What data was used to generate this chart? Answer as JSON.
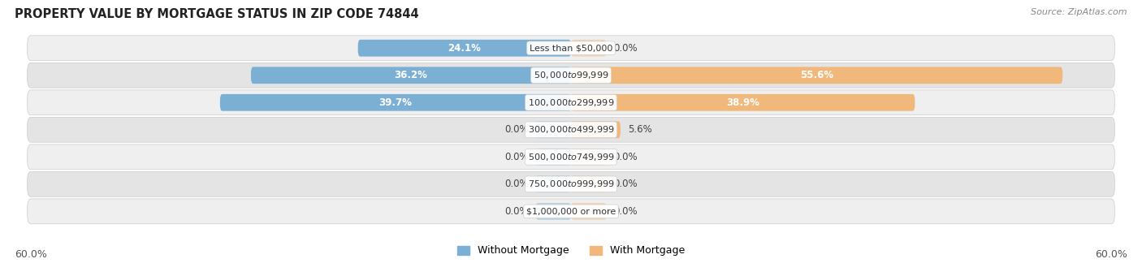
{
  "title": "PROPERTY VALUE BY MORTGAGE STATUS IN ZIP CODE 74844",
  "source": "Source: ZipAtlas.com",
  "categories": [
    "Less than $50,000",
    "$50,000 to $99,999",
    "$100,000 to $299,999",
    "$300,000 to $499,999",
    "$500,000 to $749,999",
    "$750,000 to $999,999",
    "$1,000,000 or more"
  ],
  "without_mortgage": [
    24.1,
    36.2,
    39.7,
    0.0,
    0.0,
    0.0,
    0.0
  ],
  "with_mortgage": [
    0.0,
    55.6,
    38.9,
    5.6,
    0.0,
    0.0,
    0.0
  ],
  "color_without": "#7bafd4",
  "color_with": "#f0b87a",
  "max_val": 60.0,
  "row_bg_color_odd": "#efefef",
  "row_bg_color_even": "#e4e4e4",
  "axis_label_left": "60.0%",
  "axis_label_right": "60.0%",
  "legend_without": "Without Mortgage",
  "legend_with": "With Mortgage",
  "placeholder_bar": 4.0
}
